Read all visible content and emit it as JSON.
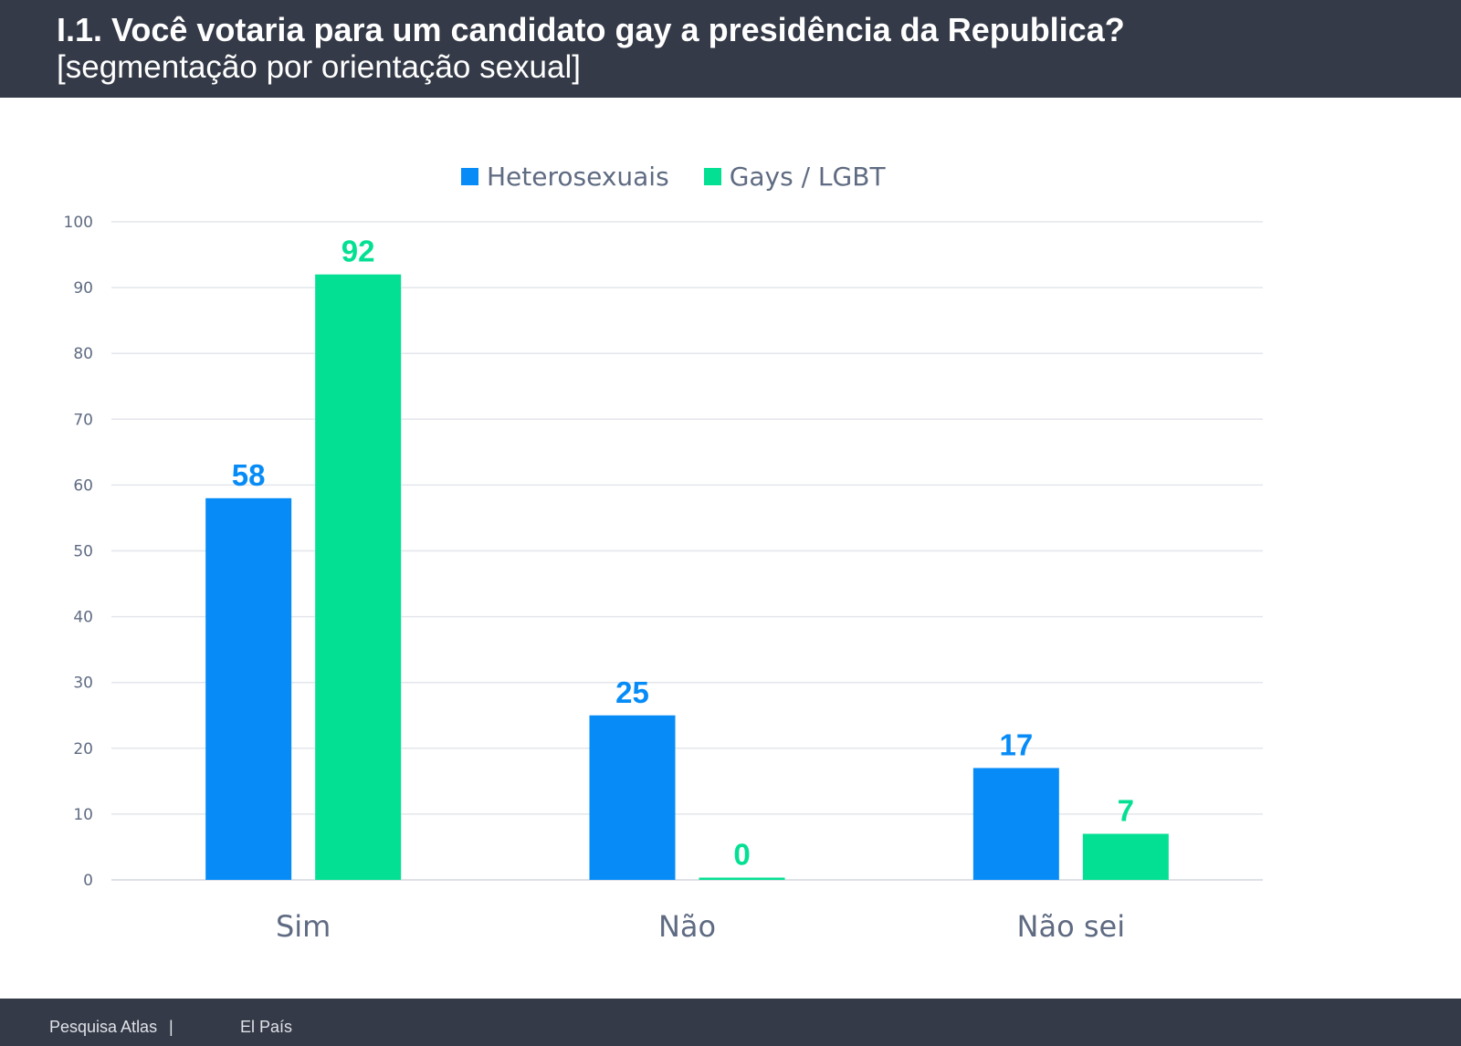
{
  "header": {
    "title": "I.1. Você votaria para um candidato gay a presidência da Republica?",
    "subtitle": "[segmentação por orientação sexual]"
  },
  "footer": {
    "source": "Pesquisa Atlas",
    "separator": "|",
    "publisher": "El País"
  },
  "colors": {
    "header_bg": "#343a47",
    "heterosexuais": "#078cf7",
    "gays_lgbt": "#04e093",
    "axis_text": "#5f6b82",
    "grid": "#e3e6eb"
  },
  "chart_data": {
    "type": "bar",
    "categories": [
      "Sim",
      "Não",
      "Não sei"
    ],
    "series": [
      {
        "name": "Heterosexuais",
        "values": [
          58,
          25,
          17
        ]
      },
      {
        "name": "Gays / LGBT",
        "values": [
          92,
          0,
          7
        ]
      }
    ],
    "yticks": [
      "0",
      "10",
      "20",
      "30",
      "40",
      "50",
      "60",
      "70",
      "80",
      "90",
      "100"
    ],
    "ylim": [
      0,
      100
    ],
    "grid": true,
    "legend": "top-center",
    "data_labels": true
  }
}
